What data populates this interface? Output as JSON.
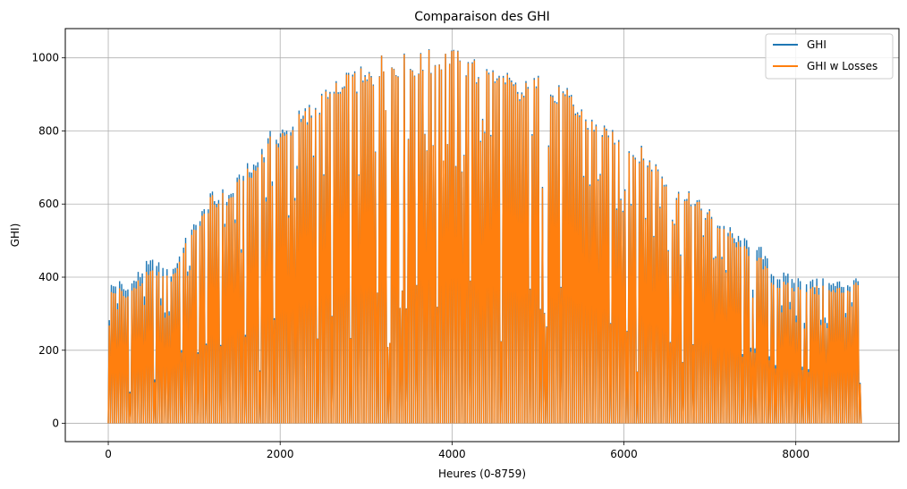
{
  "chart_data": {
    "type": "line",
    "title": "Comparaison des GHI",
    "xlabel": "Heures (0-8759)",
    "ylabel": "GHI)",
    "xlim": [
      -500,
      9200
    ],
    "ylim": [
      -50,
      1080
    ],
    "grid": true,
    "legend_position": "top-right",
    "x_ticks": [
      0,
      2000,
      4000,
      6000,
      8000
    ],
    "y_ticks": [
      0,
      200,
      400,
      600,
      800,
      1000
    ],
    "x_tick_labels": [
      "0",
      "2000",
      "4000",
      "6000",
      "8000"
    ],
    "y_tick_labels": [
      "0",
      "200",
      "400",
      "600",
      "800",
      "1000"
    ],
    "daily_step_hours": 24,
    "series": [
      {
        "name": "GHI",
        "color": "#1f77b4",
        "daily_peak_envelope": {
          "x": [
            0,
            100,
            200,
            300,
            400,
            500,
            600,
            700,
            800,
            1000,
            1200,
            1400,
            1600,
            1800,
            1900,
            2000,
            2200,
            2400,
            2600,
            2800,
            3000,
            3200,
            3400,
            3600,
            3800,
            3900,
            4000,
            4200,
            4400,
            4600,
            4800,
            5000,
            5200,
            5400,
            5600,
            5800,
            6000,
            6200,
            6400,
            6600,
            6800,
            7000,
            7200,
            7300,
            7500,
            7600,
            7700,
            7800,
            7900,
            8000,
            8200,
            8400,
            8600,
            8759
          ],
          "y": [
            385,
            400,
            380,
            410,
            440,
            455,
            440,
            420,
            470,
            560,
            640,
            650,
            710,
            780,
            810,
            820,
            860,
            900,
            935,
            970,
            980,
            1025,
            1015,
            1020,
            1030,
            1035,
            1030,
            1005,
            995,
            970,
            940,
            960,
            935,
            910,
            850,
            810,
            790,
            760,
            720,
            650,
            630,
            590,
            545,
            525,
            490,
            485,
            430,
            420,
            410,
            405,
            400,
            395,
            400,
            410
          ]
        }
      },
      {
        "name": "GHI w Losses",
        "color": "#ff7f0e",
        "daily_peak_envelope": {
          "x": [
            0,
            100,
            200,
            300,
            400,
            500,
            600,
            700,
            800,
            1000,
            1200,
            1400,
            1600,
            1800,
            1900,
            2000,
            2200,
            2400,
            2600,
            2800,
            3000,
            3200,
            3400,
            3600,
            3800,
            3900,
            4000,
            4200,
            4400,
            4600,
            4800,
            5000,
            5200,
            5400,
            5600,
            5800,
            6000,
            6200,
            6400,
            6600,
            6800,
            7000,
            7200,
            7300,
            7500,
            7600,
            7700,
            7800,
            7900,
            8000,
            8200,
            8400,
            8600,
            8759
          ],
          "y": [
            365,
            380,
            360,
            390,
            410,
            425,
            415,
            405,
            455,
            545,
            630,
            640,
            695,
            765,
            795,
            810,
            850,
            895,
            930,
            965,
            975,
            1025,
            1012,
            1018,
            1028,
            1035,
            1028,
            1002,
            990,
            965,
            935,
            955,
            930,
            905,
            845,
            805,
            785,
            755,
            715,
            645,
            625,
            585,
            535,
            510,
            460,
            455,
            405,
            395,
            385,
            380,
            380,
            375,
            385,
            400
          ]
        }
      }
    ]
  }
}
